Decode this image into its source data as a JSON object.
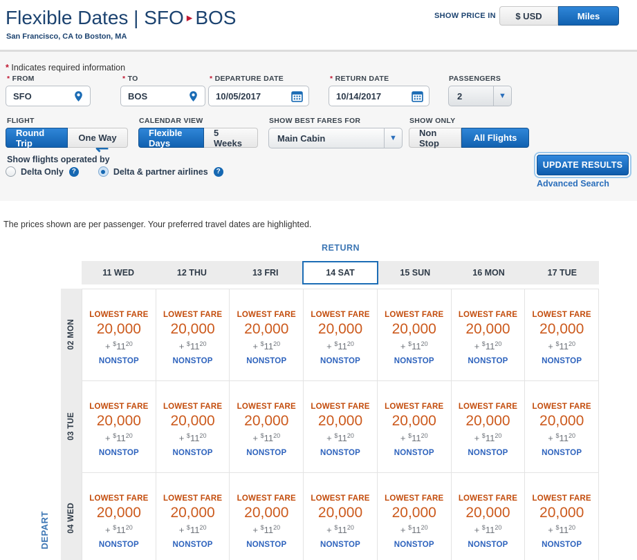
{
  "header": {
    "title_left": "Flexible Dates | SFO",
    "route_arrow": "▸",
    "title_right": "BOS",
    "subtitle": "San Francisco, CA to Boston, MA"
  },
  "price_toggle": {
    "label": "SHOW PRICE IN",
    "options": [
      "$ USD",
      "Miles"
    ],
    "selected": "Miles"
  },
  "form": {
    "required_marker": "*",
    "required_note": "Indicates required information",
    "from": {
      "label": "FROM",
      "value": "SFO"
    },
    "to": {
      "label": "TO",
      "value": "BOS"
    },
    "departure": {
      "label": "DEPARTURE DATE",
      "value": "10/05/2017"
    },
    "return": {
      "label": "RETURN DATE",
      "value": "10/14/2017"
    },
    "passengers": {
      "label": "PASSENGERS",
      "value": "2"
    },
    "flight": {
      "label": "FLIGHT",
      "options": [
        "Round Trip",
        "One Way"
      ],
      "selected": "Round Trip"
    },
    "calendar_view": {
      "label": "CALENDAR VIEW",
      "options": [
        "Flexible Days",
        "5 Weeks"
      ],
      "selected": "Flexible Days"
    },
    "best_fares": {
      "label": "SHOW BEST FARES FOR",
      "value": "Main Cabin"
    },
    "show_only": {
      "label": "SHOW ONLY",
      "options": [
        "Non Stop",
        "All Flights"
      ],
      "selected": "All Flights"
    },
    "operated_by": {
      "label": "Show flights operated by",
      "options": [
        {
          "label": "Delta Only",
          "selected": false
        },
        {
          "label": "Delta & partner airlines",
          "selected": true
        }
      ],
      "help_glyph": "?"
    },
    "update_button": "UPDATE RESULTS",
    "advanced_search": "Advanced Search"
  },
  "results": {
    "note": "The prices shown are per passenger. Your preferred travel dates are highlighted.",
    "return_axis_label": "RETURN",
    "depart_axis_label": "DEPART"
  },
  "chart_data": {
    "type": "table",
    "title": "Flexible dates award fare matrix (price shown in Miles)",
    "return_dates": [
      "11 WED",
      "12 THU",
      "13 FRI",
      "14 SAT",
      "15 SUN",
      "16 MON",
      "17 TUE"
    ],
    "depart_dates": [
      "02 MON",
      "03 TUE",
      "04 WED"
    ],
    "highlighted_return": "14 SAT",
    "cell": {
      "fare_label": "LOWEST FARE",
      "miles": "20,000",
      "plus": "+",
      "currency": "$",
      "tax_whole": "11",
      "tax_cents": "20",
      "stops": "NONSTOP"
    }
  },
  "colors": {
    "brand_navy": "#1c4370",
    "accent_blue": "#1161b0",
    "highlight_border": "#1b6cb5",
    "fare_orange": "#cc5a1d",
    "link_blue": "#2a6ebb",
    "alert_red": "#c01933"
  }
}
